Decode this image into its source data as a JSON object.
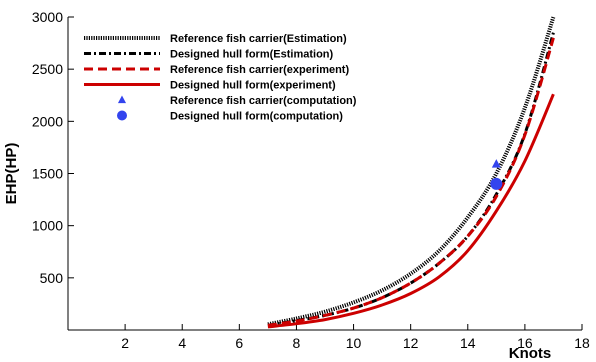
{
  "chart_data": {
    "type": "line",
    "title": "",
    "xlabel": "Knots",
    "ylabel": "EHP(HP)",
    "xlim": [
      0,
      18
    ],
    "ylim": [
      0,
      3000
    ],
    "x_ticks": [
      2,
      4,
      6,
      8,
      10,
      12,
      14,
      16,
      18
    ],
    "y_ticks": [
      500,
      1000,
      1500,
      2000,
      2500,
      3000
    ],
    "grid": false,
    "legend_position": "top-left",
    "series": [
      {
        "name": "Reference fish carrier(Estimation)",
        "kind": "line",
        "style": "dotted-thick",
        "color": "#000000",
        "x": [
          7,
          8,
          9,
          10,
          11,
          12,
          13,
          14,
          15,
          16,
          17
        ],
        "y": [
          55,
          110,
          175,
          265,
          380,
          540,
          760,
          1080,
          1500,
          2130,
          3000
        ]
      },
      {
        "name": "Designed hull form(Estimation)",
        "kind": "line",
        "style": "dashdot",
        "color": "#000000",
        "x": [
          7,
          8,
          9,
          10,
          11,
          12,
          13,
          14,
          15,
          16,
          17
        ],
        "y": [
          45,
          90,
          140,
          210,
          310,
          450,
          640,
          900,
          1300,
          1880,
          2850
        ]
      },
      {
        "name": "Reference fish carrier(experiment)",
        "kind": "line",
        "style": "dashed",
        "color": "#cc0000",
        "x": [
          7,
          8,
          9,
          10,
          11,
          12,
          13,
          14,
          15,
          16,
          17
        ],
        "y": [
          45,
          85,
          140,
          210,
          310,
          450,
          640,
          900,
          1280,
          1870,
          2800
        ]
      },
      {
        "name": "Designed hull form(experiment)",
        "kind": "line",
        "style": "solid",
        "color": "#cc0000",
        "x": [
          7,
          8,
          9,
          10,
          11,
          12,
          13,
          14,
          15,
          16,
          17
        ],
        "y": [
          30,
          60,
          100,
          160,
          240,
          350,
          510,
          760,
          1140,
          1620,
          2260
        ]
      },
      {
        "name": "Reference fish carrier(computation)",
        "kind": "point",
        "marker": "triangle",
        "color": "#3344ee",
        "x": [
          15
        ],
        "y": [
          1590
        ]
      },
      {
        "name": "Designed hull form(computation)",
        "kind": "point",
        "marker": "circle",
        "color": "#3344ee",
        "x": [
          15
        ],
        "y": [
          1400
        ]
      }
    ]
  }
}
